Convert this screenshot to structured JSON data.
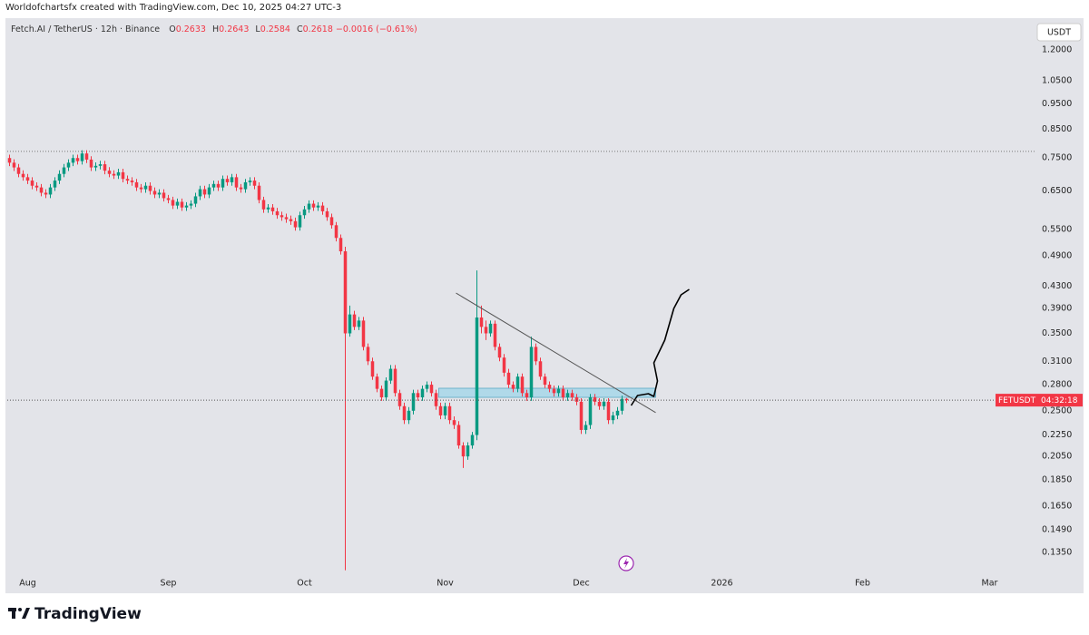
{
  "header": {
    "caption": "Worldofchartsfx created with TradingView.com, Dec 10, 2025 04:27 UTC-3",
    "brand": "TradingView"
  },
  "chart_data": {
    "type": "candlestick",
    "symbol": "Fetch.AI / TetherUS · 12h · Binance",
    "ohlc_labels": [
      "O",
      "H",
      "L",
      "C"
    ],
    "change_label": "−0.0016 (−0.61%)",
    "currency": "USDT",
    "price_tag": "FETUSDT",
    "countdown": "04:32:18",
    "up_color": "#089981",
    "down_color": "#f23645",
    "log_scale": true,
    "xlim": [
      -0.5,
      225.9
    ],
    "xticks": [
      {
        "value": 4,
        "label": "Aug"
      },
      {
        "value": 35,
        "label": "Sep"
      },
      {
        "value": 65,
        "label": "Oct"
      },
      {
        "value": 96,
        "label": "Nov"
      },
      {
        "value": 126,
        "label": "Dec"
      },
      {
        "value": 157,
        "label": "2026"
      },
      {
        "value": 188,
        "label": "Feb"
      },
      {
        "value": 216,
        "label": "Mar"
      }
    ],
    "ylim": [
      0.1243,
      1.367
    ],
    "yticks": [
      {
        "value": 1.2,
        "label": "1.2000"
      },
      {
        "value": 1.05,
        "label": "1.0500"
      },
      {
        "value": 0.95,
        "label": "0.9500"
      },
      {
        "value": 0.85,
        "label": "0.8500"
      },
      {
        "value": 0.75,
        "label": "0.7500"
      },
      {
        "value": 0.65,
        "label": "0.6500"
      },
      {
        "value": 0.55,
        "label": "0.5500"
      },
      {
        "value": 0.49,
        "label": "0.4900"
      },
      {
        "value": 0.43,
        "label": "0.4300"
      },
      {
        "value": 0.39,
        "label": "0.3900"
      },
      {
        "value": 0.35,
        "label": "0.3500"
      },
      {
        "value": 0.31,
        "label": "0.3100"
      },
      {
        "value": 0.28,
        "label": "0.2800"
      },
      {
        "value": 0.25,
        "label": "0.2500"
      },
      {
        "value": 0.225,
        "label": "0.2250"
      },
      {
        "value": 0.205,
        "label": "0.2050"
      },
      {
        "value": 0.185,
        "label": "0.1850"
      },
      {
        "value": 0.165,
        "label": "0.1650"
      },
      {
        "value": 0.149,
        "label": "0.1490"
      },
      {
        "value": 0.135,
        "label": "0.1350"
      }
    ],
    "dotted_line": 0.772,
    "candles": [
      [
        0.75,
        0.761,
        0.724,
        0.735
      ],
      [
        0.735,
        0.746,
        0.709,
        0.72
      ],
      [
        0.72,
        0.731,
        0.69,
        0.7
      ],
      [
        0.7,
        0.711,
        0.68,
        0.69
      ],
      [
        0.69,
        0.7,
        0.67,
        0.68
      ],
      [
        0.68,
        0.69,
        0.655,
        0.665
      ],
      [
        0.665,
        0.675,
        0.65,
        0.66
      ],
      [
        0.66,
        0.67,
        0.635,
        0.645
      ],
      [
        0.645,
        0.655,
        0.63,
        0.64
      ],
      [
        0.64,
        0.67,
        0.63,
        0.66
      ],
      [
        0.66,
        0.69,
        0.65,
        0.68
      ],
      [
        0.68,
        0.711,
        0.67,
        0.7
      ],
      [
        0.7,
        0.731,
        0.69,
        0.72
      ],
      [
        0.72,
        0.746,
        0.709,
        0.735
      ],
      [
        0.735,
        0.761,
        0.724,
        0.75
      ],
      [
        0.75,
        0.761,
        0.729,
        0.74
      ],
      [
        0.74,
        0.776,
        0.729,
        0.765
      ],
      [
        0.765,
        0.776,
        0.734,
        0.745
      ],
      [
        0.745,
        0.756,
        0.709,
        0.72
      ],
      [
        0.72,
        0.736,
        0.709,
        0.725
      ],
      [
        0.725,
        0.741,
        0.714,
        0.73
      ],
      [
        0.73,
        0.741,
        0.699,
        0.71
      ],
      [
        0.71,
        0.721,
        0.69,
        0.7
      ],
      [
        0.7,
        0.711,
        0.685,
        0.695
      ],
      [
        0.695,
        0.716,
        0.685,
        0.705
      ],
      [
        0.705,
        0.716,
        0.675,
        0.685
      ],
      [
        0.685,
        0.695,
        0.67,
        0.68
      ],
      [
        0.68,
        0.69,
        0.665,
        0.675
      ],
      [
        0.675,
        0.685,
        0.65,
        0.66
      ],
      [
        0.66,
        0.67,
        0.645,
        0.655
      ],
      [
        0.655,
        0.675,
        0.645,
        0.665
      ],
      [
        0.665,
        0.675,
        0.64,
        0.65
      ],
      [
        0.65,
        0.66,
        0.63,
        0.64
      ],
      [
        0.64,
        0.655,
        0.63,
        0.645
      ],
      [
        0.645,
        0.655,
        0.621,
        0.63
      ],
      [
        0.63,
        0.639,
        0.616,
        0.625
      ],
      [
        0.625,
        0.634,
        0.601,
        0.61
      ],
      [
        0.61,
        0.629,
        0.601,
        0.62
      ],
      [
        0.62,
        0.629,
        0.596,
        0.605
      ],
      [
        0.605,
        0.619,
        0.596,
        0.61
      ],
      [
        0.61,
        0.624,
        0.601,
        0.615
      ],
      [
        0.615,
        0.645,
        0.606,
        0.635
      ],
      [
        0.635,
        0.665,
        0.625,
        0.655
      ],
      [
        0.655,
        0.665,
        0.63,
        0.64
      ],
      [
        0.64,
        0.67,
        0.63,
        0.66
      ],
      [
        0.66,
        0.68,
        0.65,
        0.67
      ],
      [
        0.67,
        0.68,
        0.65,
        0.66
      ],
      [
        0.66,
        0.695,
        0.65,
        0.685
      ],
      [
        0.685,
        0.695,
        0.665,
        0.675
      ],
      [
        0.675,
        0.7,
        0.665,
        0.69
      ],
      [
        0.69,
        0.7,
        0.65,
        0.66
      ],
      [
        0.66,
        0.67,
        0.645,
        0.655
      ],
      [
        0.655,
        0.685,
        0.645,
        0.675
      ],
      [
        0.675,
        0.69,
        0.665,
        0.68
      ],
      [
        0.68,
        0.69,
        0.655,
        0.665
      ],
      [
        0.665,
        0.675,
        0.616,
        0.625
      ],
      [
        0.625,
        0.634,
        0.591,
        0.6
      ],
      [
        0.6,
        0.614,
        0.591,
        0.605
      ],
      [
        0.605,
        0.614,
        0.586,
        0.595
      ],
      [
        0.595,
        0.604,
        0.576,
        0.585
      ],
      [
        0.585,
        0.594,
        0.571,
        0.58
      ],
      [
        0.58,
        0.589,
        0.566,
        0.575
      ],
      [
        0.575,
        0.584,
        0.561,
        0.57
      ],
      [
        0.57,
        0.579,
        0.547,
        0.555
      ],
      [
        0.555,
        0.594,
        0.547,
        0.585
      ],
      [
        0.585,
        0.609,
        0.576,
        0.6
      ],
      [
        0.6,
        0.624,
        0.591,
        0.615
      ],
      [
        0.615,
        0.624,
        0.596,
        0.605
      ],
      [
        0.605,
        0.619,
        0.596,
        0.61
      ],
      [
        0.61,
        0.619,
        0.586,
        0.595
      ],
      [
        0.595,
        0.604,
        0.571,
        0.58
      ],
      [
        0.58,
        0.589,
        0.552,
        0.56
      ],
      [
        0.56,
        0.568,
        0.522,
        0.53
      ],
      [
        0.53,
        0.538,
        0.493,
        0.5
      ],
      [
        0.5,
        0.51,
        0.125,
        0.35
      ],
      [
        0.35,
        0.395,
        0.345,
        0.38
      ],
      [
        0.38,
        0.386,
        0.355,
        0.36
      ],
      [
        0.36,
        0.376,
        0.355,
        0.37
      ],
      [
        0.37,
        0.376,
        0.325,
        0.33
      ],
      [
        0.33,
        0.335,
        0.305,
        0.31
      ],
      [
        0.31,
        0.315,
        0.286,
        0.29
      ],
      [
        0.29,
        0.294,
        0.271,
        0.275
      ],
      [
        0.275,
        0.279,
        0.261,
        0.265
      ],
      [
        0.265,
        0.289,
        0.261,
        0.285
      ],
      [
        0.285,
        0.305,
        0.281,
        0.3
      ],
      [
        0.3,
        0.305,
        0.266,
        0.27
      ],
      [
        0.27,
        0.274,
        0.251,
        0.255
      ],
      [
        0.255,
        0.259,
        0.236,
        0.24
      ],
      [
        0.24,
        0.254,
        0.236,
        0.25
      ],
      [
        0.25,
        0.274,
        0.246,
        0.27
      ],
      [
        0.27,
        0.274,
        0.261,
        0.265
      ],
      [
        0.265,
        0.279,
        0.261,
        0.275
      ],
      [
        0.275,
        0.284,
        0.271,
        0.28
      ],
      [
        0.28,
        0.284,
        0.266,
        0.27
      ],
      [
        0.27,
        0.274,
        0.251,
        0.255
      ],
      [
        0.255,
        0.259,
        0.241,
        0.245
      ],
      [
        0.245,
        0.259,
        0.241,
        0.255
      ],
      [
        0.255,
        0.259,
        0.236,
        0.24
      ],
      [
        0.24,
        0.244,
        0.231,
        0.235
      ],
      [
        0.235,
        0.239,
        0.212,
        0.215
      ],
      [
        0.215,
        0.218,
        0.195,
        0.205
      ],
      [
        0.205,
        0.218,
        0.202,
        0.215
      ],
      [
        0.215,
        0.228,
        0.212,
        0.225
      ],
      [
        0.225,
        0.46,
        0.22,
        0.375
      ],
      [
        0.375,
        0.395,
        0.35,
        0.36
      ],
      [
        0.36,
        0.37,
        0.34,
        0.35
      ],
      [
        0.35,
        0.37,
        0.345,
        0.365
      ],
      [
        0.365,
        0.37,
        0.325,
        0.33
      ],
      [
        0.33,
        0.335,
        0.31,
        0.315
      ],
      [
        0.315,
        0.32,
        0.29,
        0.295
      ],
      [
        0.295,
        0.3,
        0.276,
        0.28
      ],
      [
        0.28,
        0.284,
        0.271,
        0.275
      ],
      [
        0.275,
        0.294,
        0.271,
        0.29
      ],
      [
        0.29,
        0.294,
        0.266,
        0.27
      ],
      [
        0.27,
        0.274,
        0.261,
        0.265
      ],
      [
        0.265,
        0.345,
        0.261,
        0.33
      ],
      [
        0.33,
        0.335,
        0.305,
        0.31
      ],
      [
        0.31,
        0.315,
        0.286,
        0.29
      ],
      [
        0.29,
        0.294,
        0.276,
        0.28
      ],
      [
        0.28,
        0.284,
        0.271,
        0.275
      ],
      [
        0.275,
        0.279,
        0.266,
        0.27
      ],
      [
        0.27,
        0.279,
        0.266,
        0.275
      ],
      [
        0.275,
        0.279,
        0.261,
        0.265
      ],
      [
        0.265,
        0.274,
        0.261,
        0.27
      ],
      [
        0.27,
        0.274,
        0.261,
        0.265
      ],
      [
        0.265,
        0.269,
        0.256,
        0.26
      ],
      [
        0.26,
        0.264,
        0.226,
        0.23
      ],
      [
        0.23,
        0.239,
        0.226,
        0.235
      ],
      [
        0.235,
        0.269,
        0.231,
        0.265
      ],
      [
        0.265,
        0.269,
        0.256,
        0.26
      ],
      [
        0.26,
        0.264,
        0.251,
        0.255
      ],
      [
        0.255,
        0.264,
        0.251,
        0.26
      ],
      [
        0.26,
        0.264,
        0.236,
        0.24
      ],
      [
        0.24,
        0.249,
        0.236,
        0.245
      ],
      [
        0.245,
        0.254,
        0.241,
        0.25
      ],
      [
        0.25,
        0.267,
        0.246,
        0.2633
      ],
      [
        0.2633,
        0.2643,
        0.2584,
        0.2618
      ]
    ],
    "drawings": {
      "trendline": {
        "color": "#555555",
        "points": [
          [
            98.4,
            0.417
          ],
          [
            142.4,
            0.248
          ]
        ]
      },
      "zone": {
        "color": "#9fd6e8",
        "x": [
          94.6,
          142.4
        ],
        "y": [
          0.265,
          0.2757
        ]
      },
      "projection": {
        "color": "#000000",
        "points": [
          [
            137,
            0.2558
          ],
          [
            138.4,
            0.2671
          ],
          [
            140.8,
            0.2692
          ],
          [
            142,
            0.2661
          ],
          [
            142.8,
            0.2845
          ],
          [
            142,
            0.3079
          ],
          [
            144.4,
            0.3398
          ],
          [
            146.4,
            0.39
          ],
          [
            148,
            0.4138
          ],
          [
            149.8,
            0.4237
          ]
        ]
      }
    }
  }
}
